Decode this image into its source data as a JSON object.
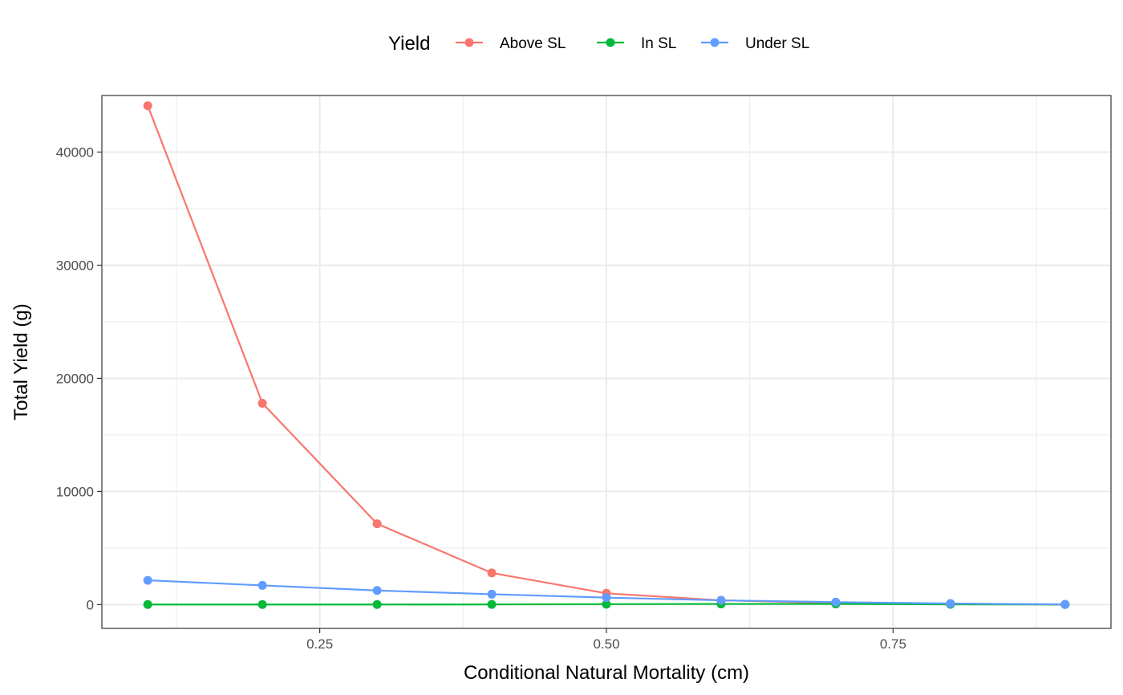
{
  "chart_data": {
    "type": "line",
    "title": "",
    "xlabel": "Conditional Natural Mortality (cm)",
    "ylabel": "Total Yield (g)",
    "xlim": [
      0.06,
      0.94
    ],
    "ylim": [
      -2100,
      45000
    ],
    "x_ticks": [
      0.25,
      0.5,
      0.75
    ],
    "x_tick_labels": [
      "0.25",
      "0.50",
      "0.75"
    ],
    "y_ticks": [
      0,
      10000,
      20000,
      30000,
      40000
    ],
    "y_tick_labels": [
      "0",
      "10000",
      "20000",
      "30000",
      "40000"
    ],
    "grid": true,
    "legend": {
      "title": "Yield",
      "position": "top"
    },
    "x": [
      0.1,
      0.2,
      0.3,
      0.4,
      0.5,
      0.6,
      0.7,
      0.8,
      0.9
    ],
    "series": [
      {
        "name": "Above SL",
        "color": "#F8766D",
        "values": [
          44100,
          17800,
          7150,
          2800,
          1000,
          380,
          130,
          50,
          20
        ]
      },
      {
        "name": "In SL",
        "color": "#00BA38",
        "values": [
          10,
          10,
          10,
          20,
          40,
          60,
          60,
          30,
          10
        ]
      },
      {
        "name": "Under SL",
        "color": "#619CFF",
        "values": [
          2150,
          1700,
          1250,
          920,
          620,
          380,
          220,
          100,
          20
        ]
      }
    ]
  }
}
